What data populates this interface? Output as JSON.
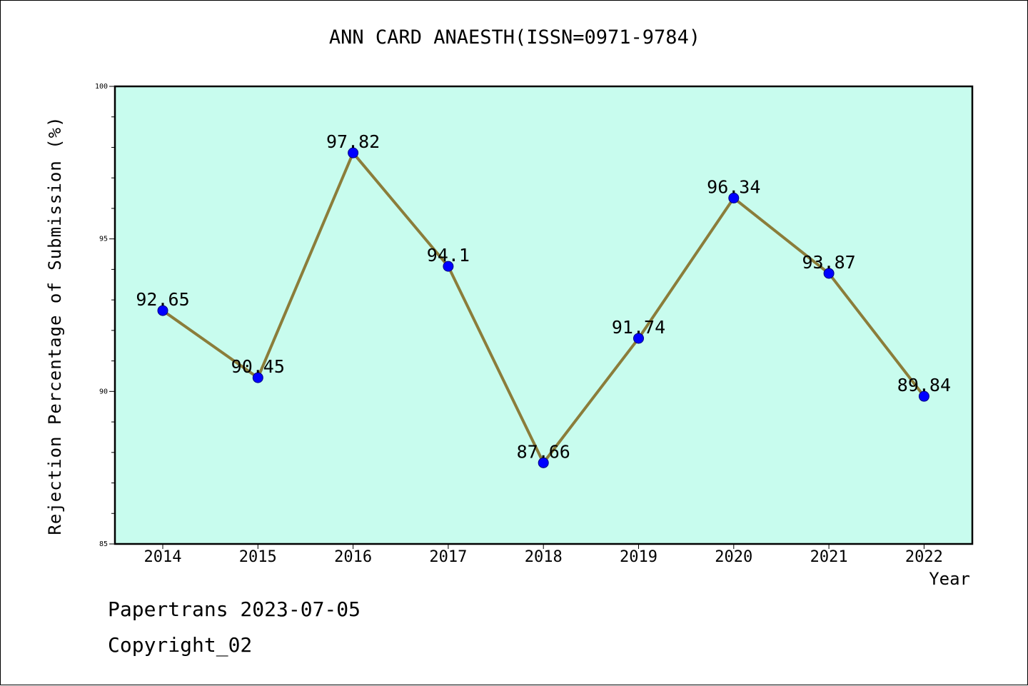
{
  "chart_data": {
    "type": "line",
    "title": "ANN CARD ANAESTH(ISSN=0971-9784)",
    "xlabel": "Year",
    "ylabel": "Rejection Percentage of Submission (%)",
    "categories": [
      "2014",
      "2015",
      "2016",
      "2017",
      "2018",
      "2019",
      "2020",
      "2021",
      "2022"
    ],
    "series": [
      {
        "values": [
          92.65,
          90.45,
          97.82,
          94.1,
          87.66,
          91.74,
          96.34,
          93.87,
          89.84
        ],
        "labels": [
          "92.65",
          "90.45",
          "97.82",
          "94.1",
          "87.66",
          "91.74",
          "96.34",
          "93.87",
          "89.84"
        ],
        "line_color": "#8b7d3a",
        "marker_color": "#0000ff"
      }
    ],
    "ylim": [
      85,
      100
    ],
    "yticks": [
      "85",
      "90",
      "95",
      "100"
    ],
    "plot_background": "#c8fcee",
    "grid": false,
    "legend": "none"
  },
  "footer": {
    "line1": "Papertrans 2023-07-05",
    "line2": "Copyright_02"
  }
}
